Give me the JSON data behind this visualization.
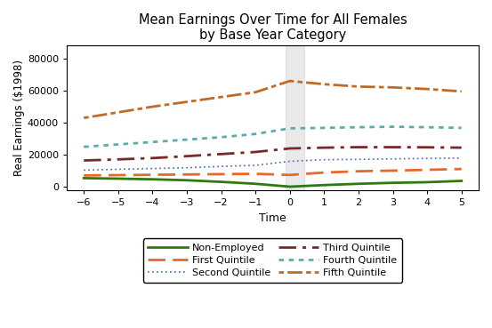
{
  "title": "Mean Earnings Over Time for All Females\nby Base Year Category",
  "xlabel": "Time",
  "ylabel": "Real Earnings ($1998)",
  "xlim": [
    -6.5,
    5.5
  ],
  "ylim": [
    -2000,
    88000
  ],
  "yticks": [
    0,
    20000,
    40000,
    60000,
    80000
  ],
  "xticks": [
    -6,
    -5,
    -4,
    -3,
    -2,
    -1,
    0,
    1,
    2,
    3,
    4,
    5
  ],
  "shaded_x_center": 0.15,
  "shaded_x_width": 0.55,
  "series": {
    "Non-Employed": {
      "x": [
        -6,
        -5,
        -4,
        -3,
        -2,
        -1,
        0,
        1,
        2,
        3,
        4,
        5
      ],
      "y": [
        5500,
        5200,
        4800,
        4200,
        3200,
        2000,
        200,
        1200,
        2000,
        2600,
        3000,
        3800
      ]
    },
    "First Quintile": {
      "x": [
        -6,
        -5,
        -4,
        -3,
        -2,
        -1,
        0,
        1,
        2,
        3,
        4,
        5
      ],
      "y": [
        7200,
        7400,
        7600,
        7800,
        8000,
        8200,
        7500,
        9000,
        9800,
        10200,
        10700,
        11200
      ]
    },
    "Second Quintile": {
      "x": [
        -6,
        -5,
        -4,
        -3,
        -2,
        -1,
        0,
        1,
        2,
        3,
        4,
        5
      ],
      "y": [
        10500,
        11000,
        11500,
        12000,
        12800,
        13500,
        16000,
        17000,
        17200,
        17500,
        17800,
        18000
      ]
    },
    "Third Quintile": {
      "x": [
        -6,
        -5,
        -4,
        -3,
        -2,
        -1,
        0,
        1,
        2,
        3,
        4,
        5
      ],
      "y": [
        16500,
        17200,
        18000,
        19200,
        20500,
        21800,
        24000,
        24500,
        24800,
        24800,
        24700,
        24500
      ]
    },
    "Fourth Quintile": {
      "x": [
        -6,
        -5,
        -4,
        -3,
        -2,
        -1,
        0,
        1,
        2,
        3,
        4,
        5
      ],
      "y": [
        25000,
        26500,
        28000,
        29500,
        31000,
        33000,
        36500,
        36800,
        37200,
        37500,
        37200,
        36800
      ]
    },
    "Fifth Quintile": {
      "x": [
        -6,
        -5,
        -4,
        -3,
        -2,
        -1,
        0,
        1,
        2,
        3,
        4,
        5
      ],
      "y": [
        43000,
        46500,
        50000,
        53000,
        56000,
        59000,
        66000,
        64000,
        62500,
        62000,
        61000,
        59500
      ]
    }
  },
  "line_styles": {
    "Non-Employed": {
      "color": "#2d7a0e",
      "lw": 2.0,
      "ls": "-",
      "dashes": null
    },
    "First Quintile": {
      "color": "#e8682a",
      "lw": 2.0,
      "ls": "--",
      "dashes": [
        7,
        3
      ]
    },
    "Second Quintile": {
      "color": "#3c6ab5",
      "lw": 1.2,
      "ls": ":",
      "dashes": [
        1,
        2
      ]
    },
    "Third Quintile": {
      "color": "#7b2828",
      "lw": 2.0,
      "ls": "-.",
      "dashes": [
        7,
        2.5,
        1.5,
        2.5
      ]
    },
    "Fourth Quintile": {
      "color": "#5aadad",
      "lw": 2.0,
      "ls": ":",
      "dashes": [
        2,
        2
      ]
    },
    "Fifth Quintile": {
      "color": "#c06a25",
      "lw": 2.0,
      "ls": ":",
      "dashes": [
        2,
        1.5,
        6,
        1.5
      ]
    }
  },
  "legend_cols": [
    [
      "Non-Employed",
      "Second Quintile",
      "Fourth Quintile"
    ],
    [
      "First Quintile",
      "Third Quintile",
      "Fifth Quintile"
    ]
  ],
  "background_color": "#ffffff",
  "shaded_color": "#d8d8d8",
  "shaded_alpha": 0.55
}
